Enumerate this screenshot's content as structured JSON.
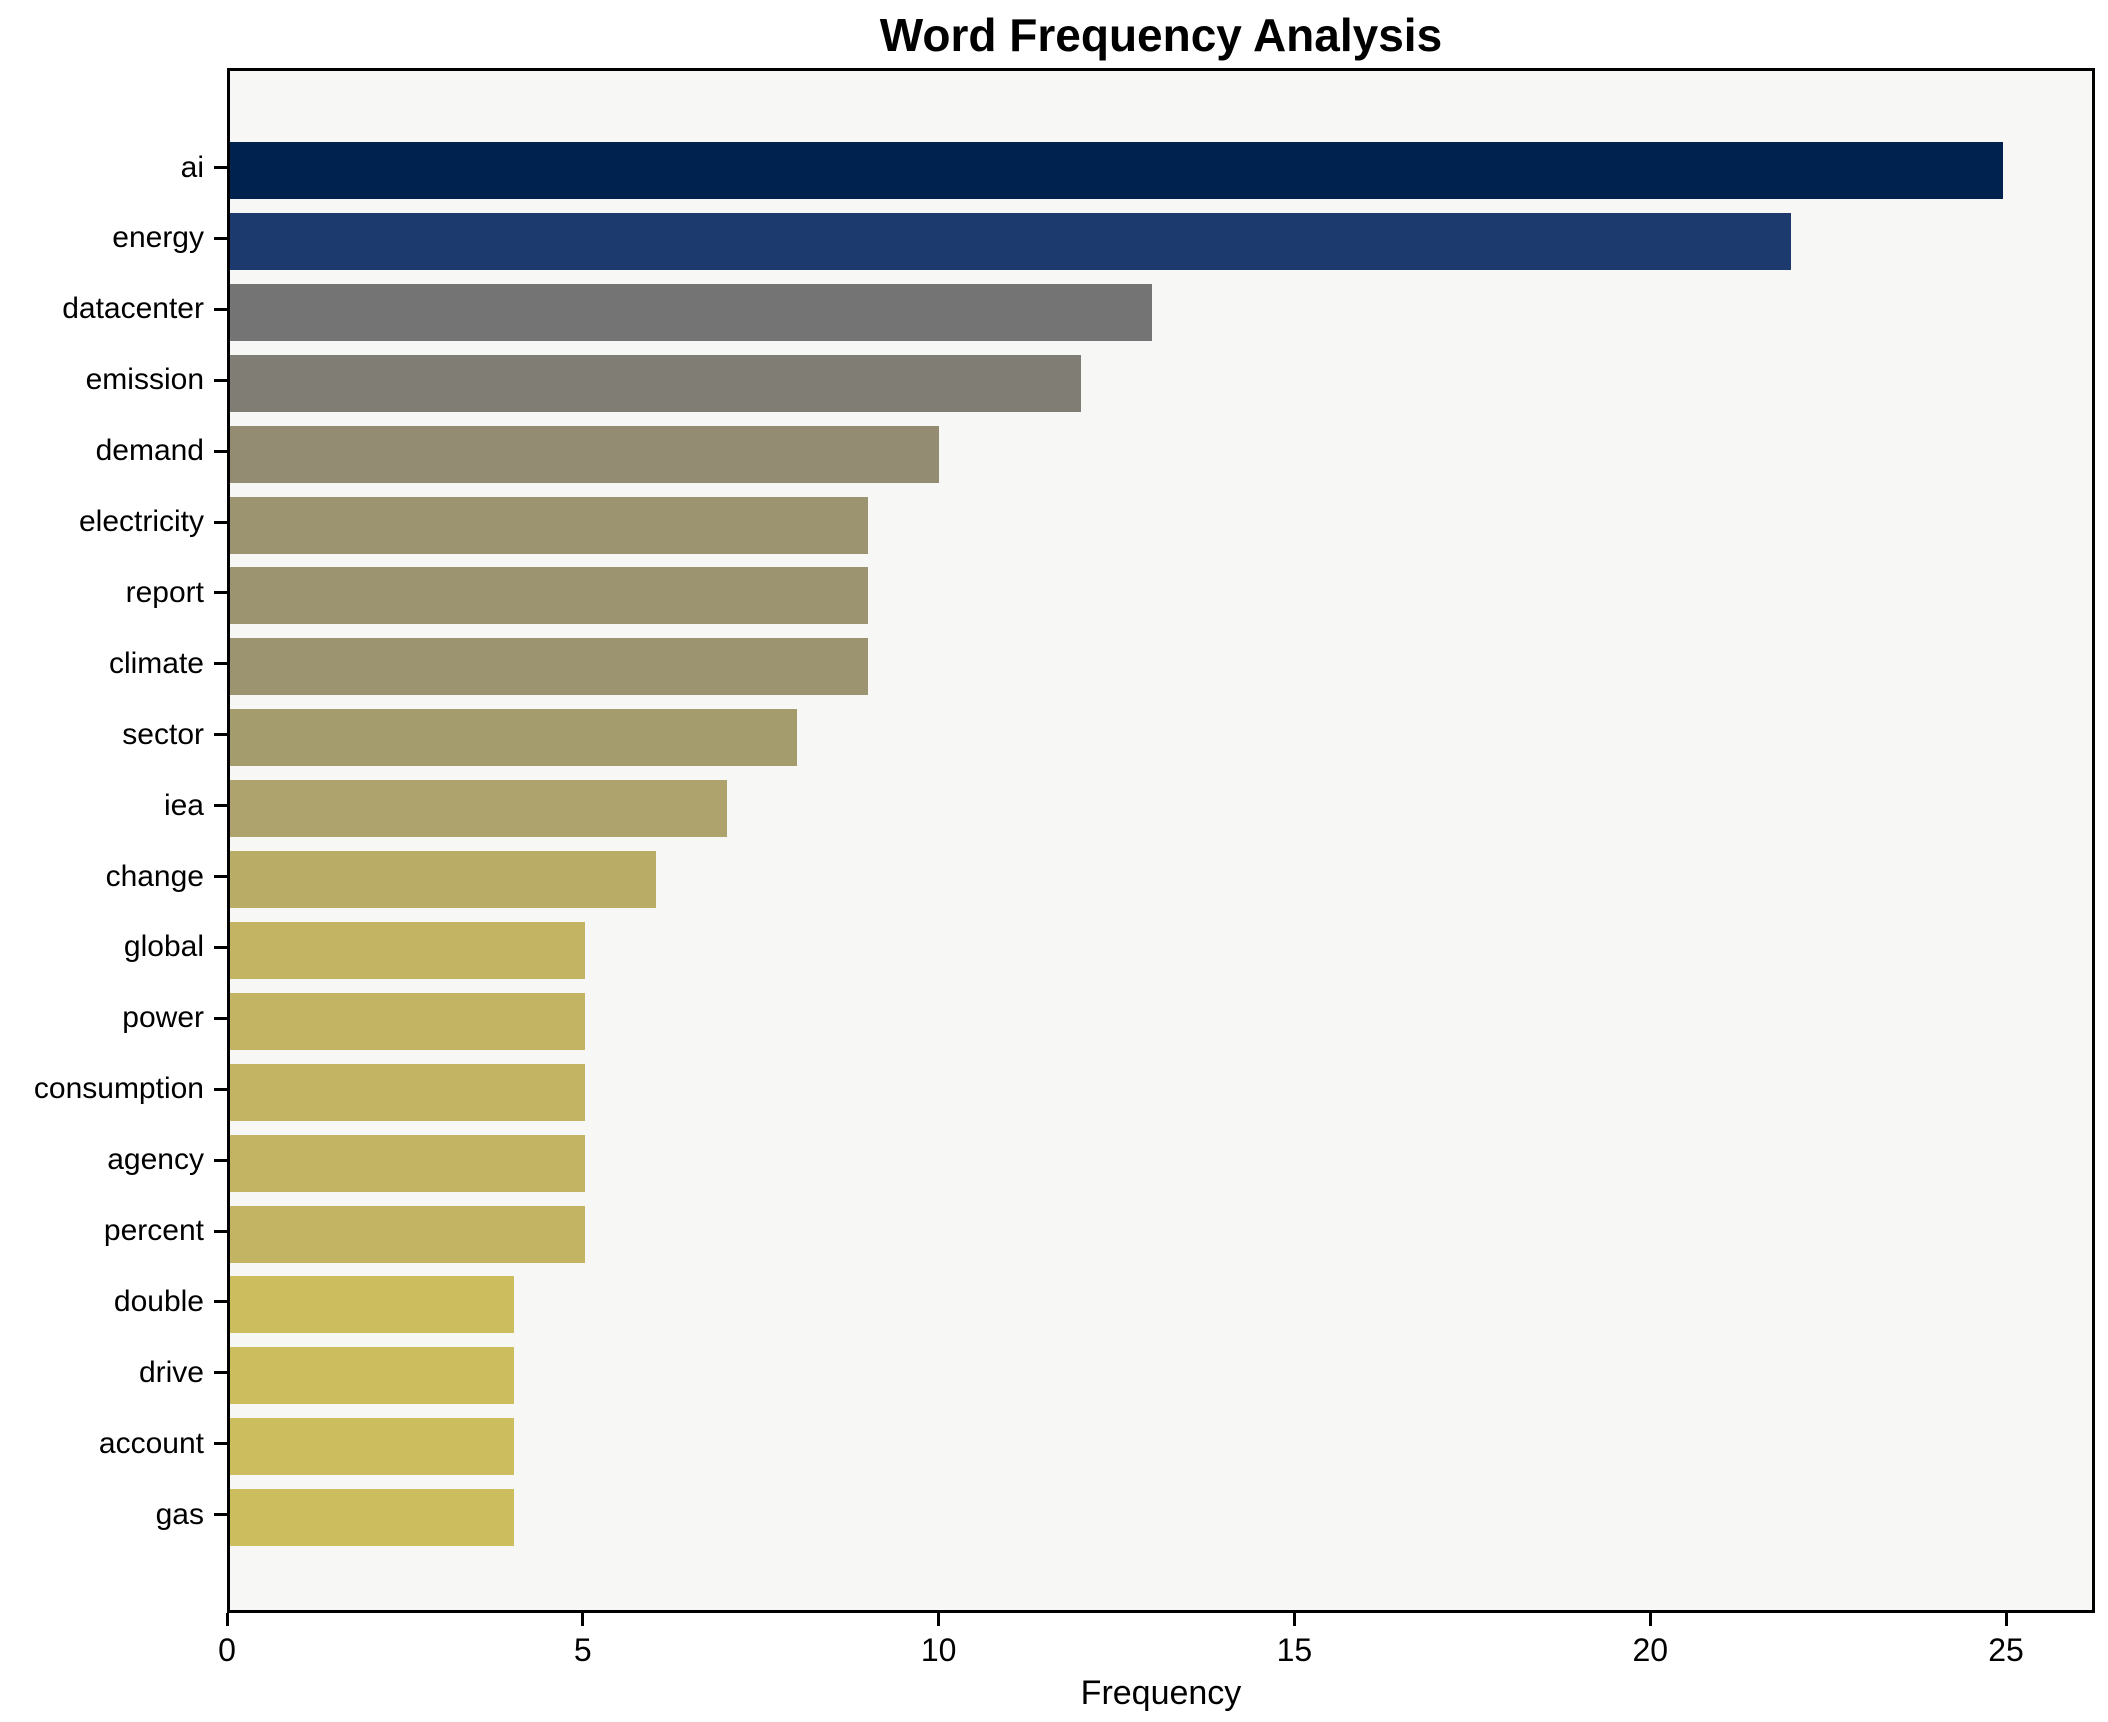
{
  "chart_data": {
    "type": "bar",
    "orientation": "horizontal",
    "title": "Word Frequency Analysis",
    "xlabel": "Frequency",
    "ylabel": "",
    "categories": [
      "ai",
      "energy",
      "datacenter",
      "emission",
      "demand",
      "electricity",
      "report",
      "climate",
      "sector",
      "iea",
      "change",
      "global",
      "power",
      "consumption",
      "agency",
      "percent",
      "double",
      "drive",
      "account",
      "gas"
    ],
    "values": [
      25,
      22,
      13,
      12,
      10,
      9,
      9,
      9,
      8,
      7,
      6,
      5,
      5,
      5,
      5,
      5,
      4,
      4,
      4,
      4
    ],
    "bar_colors": [
      "#00224E",
      "#1D3A6E",
      "#747474",
      "#807D75",
      "#938C72",
      "#9C9470",
      "#9C9470",
      "#9C9470",
      "#A59C6E",
      "#AEA36C",
      "#B8AC66",
      "#C2B462",
      "#C2B462",
      "#C2B462",
      "#C2B462",
      "#C2B462",
      "#CCBD5E",
      "#CCBD5E",
      "#CCBD5E",
      "#CCBD5E"
    ],
    "xlim": [
      0,
      26.25
    ],
    "xticks": [
      0,
      5,
      10,
      15,
      20,
      25
    ],
    "grid": false,
    "legend": false,
    "plot_background": "#f7f7f5",
    "figure_background": "#ffffff",
    "axis_color": "#000000"
  }
}
